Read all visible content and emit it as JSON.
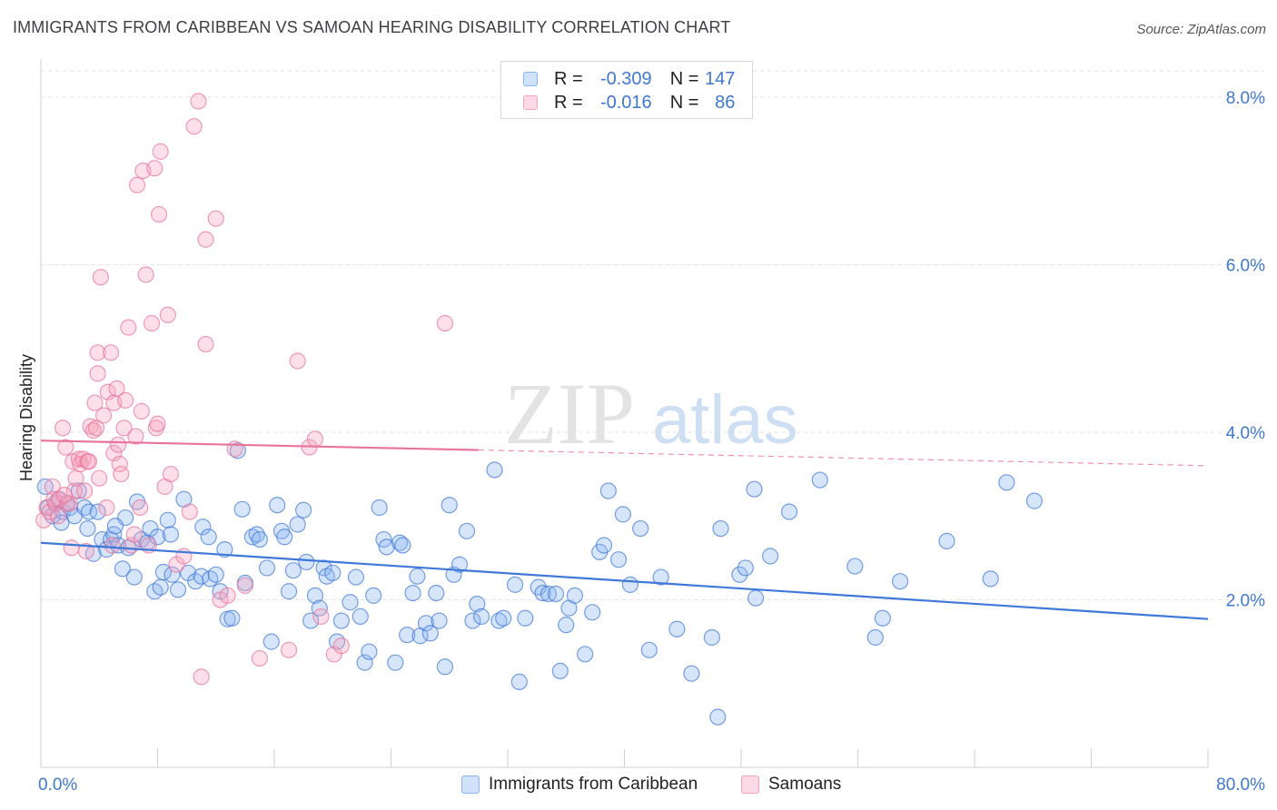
{
  "header": {
    "title": "IMMIGRANTS FROM CARIBBEAN VS SAMOAN HEARING DISABILITY CORRELATION CHART",
    "source": "Source: ZipAtlas.com"
  },
  "legend": {
    "rows": [
      {
        "r_label": "R = ",
        "r_value": "-0.309",
        "n_label": "N = ",
        "n_value": "147",
        "color": "#8ab4f0"
      },
      {
        "r_label": "R = ",
        "r_value": "-0.016",
        "n_label": "N = ",
        "n_value": "86",
        "color": "#f5a3bd"
      }
    ]
  },
  "bottom_legend": [
    {
      "label": "Immigrants from Caribbean",
      "color": "#8ab4f0"
    },
    {
      "label": "Samoans",
      "color": "#f5a3bd"
    }
  ],
  "watermark": {
    "zip": "ZIP",
    "atlas": "atlas"
  },
  "chart_data": {
    "type": "scatter",
    "title": "IMMIGRANTS FROM CARIBBEAN VS SAMOAN HEARING DISABILITY CORRELATION CHART",
    "ylabel": "Hearing Disability",
    "xlabel": "",
    "xlim": [
      0,
      80
    ],
    "ylim": [
      0,
      8.4
    ],
    "x_tick_labels": [
      "0.0%",
      "80.0%"
    ],
    "y_ticks": [
      {
        "value": 2,
        "label": "2.0%"
      },
      {
        "value": 4,
        "label": "4.0%"
      },
      {
        "value": 6,
        "label": "6.0%"
      },
      {
        "value": 8,
        "label": "8.0%"
      }
    ],
    "grid": true,
    "legend_position": "top-center",
    "series": [
      {
        "name": "Immigrants from Caribbean",
        "color": "#3f78d8",
        "fill": "#8ab4f0",
        "trend": {
          "x": [
            0,
            80
          ],
          "y": [
            2.68,
            1.77
          ],
          "style": "solid"
        },
        "points": [
          [
            0.3,
            3.35
          ],
          [
            0.5,
            3.1
          ],
          [
            0.8,
            3.0
          ],
          [
            1.0,
            3.15
          ],
          [
            1.2,
            3.2
          ],
          [
            1.5,
            3.05
          ],
          [
            1.8,
            3.15
          ],
          [
            2.0,
            3.1
          ],
          [
            2.3,
            3.0
          ],
          [
            2.6,
            3.3
          ],
          [
            3.0,
            3.1
          ],
          [
            3.3,
            3.05
          ],
          [
            3.6,
            2.55
          ],
          [
            3.9,
            3.05
          ],
          [
            4.2,
            2.72
          ],
          [
            4.5,
            2.6
          ],
          [
            4.8,
            2.72
          ],
          [
            5.0,
            2.78
          ],
          [
            5.3,
            2.65
          ],
          [
            5.6,
            2.37
          ],
          [
            5.8,
            2.98
          ],
          [
            6.0,
            2.62
          ],
          [
            6.4,
            2.27
          ],
          [
            6.6,
            3.17
          ],
          [
            6.9,
            2.72
          ],
          [
            7.3,
            2.68
          ],
          [
            7.5,
            2.85
          ],
          [
            7.8,
            2.1
          ],
          [
            8.0,
            2.75
          ],
          [
            8.2,
            2.15
          ],
          [
            8.4,
            2.33
          ],
          [
            8.7,
            2.95
          ],
          [
            8.9,
            2.78
          ],
          [
            9.0,
            2.3
          ],
          [
            9.4,
            2.12
          ],
          [
            9.8,
            3.2
          ],
          [
            10.1,
            2.32
          ],
          [
            10.6,
            2.22
          ],
          [
            11.0,
            2.28
          ],
          [
            11.1,
            2.87
          ],
          [
            11.5,
            2.75
          ],
          [
            11.6,
            2.25
          ],
          [
            12.0,
            2.3
          ],
          [
            12.3,
            2.1
          ],
          [
            12.6,
            2.6
          ],
          [
            12.8,
            1.77
          ],
          [
            13.1,
            1.78
          ],
          [
            13.5,
            3.78
          ],
          [
            13.8,
            3.08
          ],
          [
            14.0,
            2.2
          ],
          [
            14.5,
            2.75
          ],
          [
            14.8,
            2.78
          ],
          [
            15.0,
            2.72
          ],
          [
            15.5,
            2.38
          ],
          [
            15.8,
            1.5
          ],
          [
            16.2,
            3.13
          ],
          [
            16.5,
            2.82
          ],
          [
            16.7,
            2.75
          ],
          [
            17.0,
            2.1
          ],
          [
            17.3,
            2.35
          ],
          [
            17.6,
            2.9
          ],
          [
            18.0,
            3.07
          ],
          [
            18.2,
            2.45
          ],
          [
            18.5,
            1.75
          ],
          [
            18.8,
            2.05
          ],
          [
            19.1,
            1.9
          ],
          [
            19.4,
            2.38
          ],
          [
            19.6,
            2.28
          ],
          [
            20.0,
            2.32
          ],
          [
            20.3,
            1.5
          ],
          [
            20.6,
            1.75
          ],
          [
            21.2,
            1.97
          ],
          [
            21.6,
            2.27
          ],
          [
            21.9,
            1.8
          ],
          [
            22.2,
            1.25
          ],
          [
            22.5,
            1.38
          ],
          [
            22.8,
            2.05
          ],
          [
            23.2,
            3.1
          ],
          [
            23.5,
            2.72
          ],
          [
            23.7,
            2.63
          ],
          [
            24.3,
            1.25
          ],
          [
            24.6,
            2.68
          ],
          [
            24.8,
            2.65
          ],
          [
            25.1,
            1.58
          ],
          [
            25.5,
            2.08
          ],
          [
            25.8,
            2.28
          ],
          [
            26.0,
            1.57
          ],
          [
            26.4,
            1.72
          ],
          [
            26.7,
            1.6
          ],
          [
            27.1,
            2.08
          ],
          [
            27.3,
            1.75
          ],
          [
            27.7,
            1.2
          ],
          [
            28.0,
            3.13
          ],
          [
            28.3,
            2.3
          ],
          [
            28.7,
            2.42
          ],
          [
            29.2,
            2.82
          ],
          [
            29.6,
            1.75
          ],
          [
            29.9,
            1.95
          ],
          [
            30.2,
            1.8
          ],
          [
            31.1,
            3.55
          ],
          [
            31.4,
            1.75
          ],
          [
            31.7,
            1.78
          ],
          [
            32.5,
            2.18
          ],
          [
            32.8,
            1.02
          ],
          [
            33.2,
            1.78
          ],
          [
            34.1,
            2.15
          ],
          [
            34.4,
            2.08
          ],
          [
            34.8,
            2.07
          ],
          [
            35.3,
            2.07
          ],
          [
            35.6,
            1.15
          ],
          [
            36.0,
            1.7
          ],
          [
            36.2,
            1.9
          ],
          [
            36.6,
            2.05
          ],
          [
            37.3,
            1.35
          ],
          [
            37.8,
            1.85
          ],
          [
            38.3,
            2.57
          ],
          [
            38.6,
            2.65
          ],
          [
            38.9,
            3.3
          ],
          [
            39.6,
            2.48
          ],
          [
            39.9,
            3.02
          ],
          [
            40.4,
            2.18
          ],
          [
            41.1,
            2.85
          ],
          [
            41.7,
            1.4
          ],
          [
            42.5,
            2.27
          ],
          [
            43.6,
            1.65
          ],
          [
            44.6,
            1.12
          ],
          [
            46.0,
            1.55
          ],
          [
            46.4,
            0.6
          ],
          [
            46.6,
            2.85
          ],
          [
            47.9,
            2.3
          ],
          [
            48.3,
            2.38
          ],
          [
            48.9,
            3.32
          ],
          [
            49.0,
            2.02
          ],
          [
            50.0,
            2.52
          ],
          [
            51.3,
            3.05
          ],
          [
            53.4,
            3.43
          ],
          [
            55.8,
            2.4
          ],
          [
            57.2,
            1.55
          ],
          [
            57.7,
            1.78
          ],
          [
            58.9,
            2.22
          ],
          [
            62.1,
            2.7
          ],
          [
            65.1,
            2.25
          ],
          [
            66.2,
            3.4
          ],
          [
            68.1,
            3.18
          ],
          [
            3.2,
            2.85
          ],
          [
            5.1,
            2.88
          ],
          [
            1.4,
            2.92
          ]
        ]
      },
      {
        "name": "Samoans",
        "color": "#e8749a",
        "fill": "#f5a3bd",
        "trend": {
          "x": [
            0,
            80
          ],
          "y": [
            3.9,
            3.6
          ],
          "style": "solid-then-dashed",
          "solid_until": 30
        },
        "points": [
          [
            0.2,
            2.95
          ],
          [
            0.4,
            3.1
          ],
          [
            0.6,
            3.05
          ],
          [
            0.8,
            3.35
          ],
          [
            1.0,
            3.15
          ],
          [
            1.2,
            3.0
          ],
          [
            1.3,
            3.2
          ],
          [
            1.5,
            4.05
          ],
          [
            1.7,
            3.82
          ],
          [
            1.8,
            3.15
          ],
          [
            2.0,
            3.15
          ],
          [
            2.2,
            3.65
          ],
          [
            2.3,
            3.3
          ],
          [
            2.4,
            3.45
          ],
          [
            2.6,
            3.68
          ],
          [
            2.7,
            3.62
          ],
          [
            2.9,
            3.68
          ],
          [
            3.0,
            3.3
          ],
          [
            3.1,
            2.58
          ],
          [
            3.2,
            3.65
          ],
          [
            3.3,
            3.65
          ],
          [
            3.4,
            4.07
          ],
          [
            3.6,
            4.02
          ],
          [
            3.7,
            4.35
          ],
          [
            3.8,
            4.05
          ],
          [
            3.9,
            4.7
          ],
          [
            3.9,
            4.95
          ],
          [
            4.0,
            3.45
          ],
          [
            4.1,
            5.85
          ],
          [
            4.3,
            4.2
          ],
          [
            4.5,
            3.1
          ],
          [
            4.6,
            4.48
          ],
          [
            4.8,
            4.95
          ],
          [
            4.9,
            2.65
          ],
          [
            5.0,
            3.75
          ],
          [
            5.0,
            4.35
          ],
          [
            5.2,
            4.52
          ],
          [
            5.3,
            3.85
          ],
          [
            5.4,
            3.62
          ],
          [
            5.5,
            3.5
          ],
          [
            5.7,
            4.05
          ],
          [
            5.8,
            4.38
          ],
          [
            6.0,
            5.25
          ],
          [
            6.2,
            2.65
          ],
          [
            6.4,
            2.78
          ],
          [
            6.5,
            3.95
          ],
          [
            6.6,
            6.95
          ],
          [
            6.8,
            3.1
          ],
          [
            6.9,
            4.25
          ],
          [
            7.0,
            7.12
          ],
          [
            7.2,
            5.88
          ],
          [
            7.4,
            2.65
          ],
          [
            7.6,
            5.3
          ],
          [
            7.8,
            7.15
          ],
          [
            7.9,
            4.05
          ],
          [
            8.0,
            4.1
          ],
          [
            8.1,
            6.6
          ],
          [
            8.2,
            7.35
          ],
          [
            8.5,
            3.35
          ],
          [
            8.7,
            5.4
          ],
          [
            8.9,
            3.5
          ],
          [
            9.3,
            2.42
          ],
          [
            9.8,
            2.52
          ],
          [
            10.2,
            3.05
          ],
          [
            10.5,
            7.65
          ],
          [
            10.8,
            7.95
          ],
          [
            11.0,
            1.08
          ],
          [
            11.3,
            5.05
          ],
          [
            11.3,
            6.3
          ],
          [
            12.0,
            6.55
          ],
          [
            12.3,
            2.0
          ],
          [
            12.8,
            2.05
          ],
          [
            13.3,
            3.8
          ],
          [
            14.0,
            2.17
          ],
          [
            15.0,
            1.3
          ],
          [
            17.0,
            1.4
          ],
          [
            17.6,
            4.85
          ],
          [
            18.4,
            3.82
          ],
          [
            18.8,
            3.92
          ],
          [
            19.2,
            1.8
          ],
          [
            20.1,
            1.35
          ],
          [
            20.6,
            1.45
          ],
          [
            27.7,
            5.3
          ],
          [
            2.1,
            2.62
          ],
          [
            0.9,
            3.2
          ],
          [
            1.6,
            3.25
          ]
        ]
      }
    ]
  }
}
